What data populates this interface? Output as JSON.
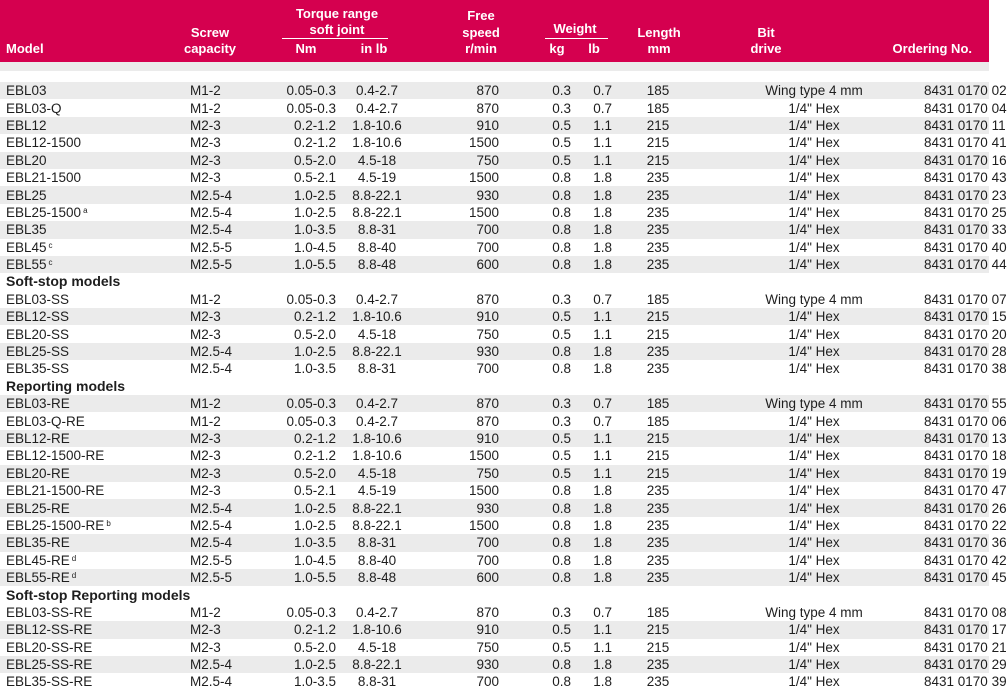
{
  "header": {
    "model": "Model",
    "screw_line1": "Screw",
    "screw_line2": "capacity",
    "torque_line1": "Torque range",
    "torque_line2": "soft joint",
    "torque_nm": "Nm",
    "torque_inlb": "in lb",
    "speed_line1": "Free",
    "speed_line2": "speed",
    "speed_unit": "r/min",
    "weight": "Weight",
    "weight_kg": "kg",
    "weight_lb": "lb",
    "length_line1": "Length",
    "length_unit": "mm",
    "bit_line1": "Bit",
    "bit_line2": "drive",
    "ordering": "Ordering No."
  },
  "groups": [
    {
      "title": "",
      "rows": [
        {
          "model": "EBL03",
          "note": "",
          "screw": "M1-2",
          "nm": "0.05-0.3",
          "inlb": "0.4-2.7",
          "speed": "870",
          "kg": "0.3",
          "lb": "0.7",
          "length": "185",
          "bit": "Wing type 4 mm",
          "ordering": "8431 0170 02"
        },
        {
          "model": "EBL03-Q",
          "note": "",
          "screw": "M1-2",
          "nm": "0.05-0.3",
          "inlb": "0.4-2.7",
          "speed": "870",
          "kg": "0.3",
          "lb": "0.7",
          "length": "185",
          "bit": "1/4\" Hex",
          "ordering": "8431 0170 04"
        },
        {
          "model": "EBL12",
          "note": "",
          "screw": "M2-3",
          "nm": "0.2-1.2",
          "inlb": "1.8-10.6",
          "speed": "910",
          "kg": "0.5",
          "lb": "1.1",
          "length": "215",
          "bit": "1/4\" Hex",
          "ordering": "8431 0170 11"
        },
        {
          "model": "EBL12-1500",
          "note": "",
          "screw": "M2-3",
          "nm": "0.2-1.2",
          "inlb": "1.8-10.6",
          "speed": "1500",
          "kg": "0.5",
          "lb": "1.1",
          "length": "215",
          "bit": "1/4\" Hex",
          "ordering": "8431 0170 41"
        },
        {
          "model": "EBL20",
          "note": "",
          "screw": "M2-3",
          "nm": "0.5-2.0",
          "inlb": "4.5-18",
          "speed": "750",
          "kg": "0.5",
          "lb": "1.1",
          "length": "215",
          "bit": "1/4\" Hex",
          "ordering": "8431 0170 16"
        },
        {
          "model": "EBL21-1500",
          "note": "",
          "screw": "M2-3",
          "nm": "0.5-2.1",
          "inlb": "4.5-19",
          "speed": "1500",
          "kg": "0.8",
          "lb": "1.8",
          "length": "235",
          "bit": "1/4\" Hex",
          "ordering": "8431 0170 43"
        },
        {
          "model": "EBL25",
          "note": "",
          "screw": "M2.5-4",
          "nm": "1.0-2.5",
          "inlb": "8.8-22.1",
          "speed": "930",
          "kg": "0.8",
          "lb": "1.8",
          "length": "235",
          "bit": "1/4\" Hex",
          "ordering": "8431 0170 23"
        },
        {
          "model": "EBL25-1500",
          "note": "a",
          "screw": "M2.5-4",
          "nm": "1.0-2.5",
          "inlb": "8.8-22.1",
          "speed": "1500",
          "kg": "0.8",
          "lb": "1.8",
          "length": "235",
          "bit": "1/4\" Hex",
          "ordering": "8431 0170 25"
        },
        {
          "model": "EBL35",
          "note": "",
          "screw": "M2.5-4",
          "nm": "1.0-3.5",
          "inlb": "8.8-31",
          "speed": "700",
          "kg": "0.8",
          "lb": "1.8",
          "length": "235",
          "bit": "1/4\" Hex",
          "ordering": "8431 0170 33"
        },
        {
          "model": "EBL45",
          "note": "c",
          "screw": "M2.5-5",
          "nm": "1.0-4.5",
          "inlb": "8.8-40",
          "speed": "700",
          "kg": "0.8",
          "lb": "1.8",
          "length": "235",
          "bit": "1/4\" Hex",
          "ordering": "8431 0170 40"
        },
        {
          "model": "EBL55",
          "note": "c",
          "screw": "M2.5-5",
          "nm": "1.0-5.5",
          "inlb": "8.8-48",
          "speed": "600",
          "kg": "0.8",
          "lb": "1.8",
          "length": "235",
          "bit": "1/4\" Hex",
          "ordering": "8431 0170 44"
        }
      ]
    },
    {
      "title": "Soft-stop models",
      "rows": [
        {
          "model": "EBL03-SS",
          "note": "",
          "screw": "M1-2",
          "nm": "0.05-0.3",
          "inlb": "0.4-2.7",
          "speed": "870",
          "kg": "0.3",
          "lb": "0.7",
          "length": "185",
          "bit": "Wing type 4 mm",
          "ordering": "8431 0170 07"
        },
        {
          "model": "EBL12-SS",
          "note": "",
          "screw": "M2-3",
          "nm": "0.2-1.2",
          "inlb": "1.8-10.6",
          "speed": "910",
          "kg": "0.5",
          "lb": "1.1",
          "length": "215",
          "bit": "1/4\" Hex",
          "ordering": "8431 0170 15"
        },
        {
          "model": "EBL20-SS",
          "note": "",
          "screw": "M2-3",
          "nm": "0.5-2.0",
          "inlb": "4.5-18",
          "speed": "750",
          "kg": "0.5",
          "lb": "1.1",
          "length": "215",
          "bit": "1/4\" Hex",
          "ordering": "8431 0170 20"
        },
        {
          "model": "EBL25-SS",
          "note": "",
          "screw": "M2.5-4",
          "nm": "1.0-2.5",
          "inlb": "8.8-22.1",
          "speed": "930",
          "kg": "0.8",
          "lb": "1.8",
          "length": "235",
          "bit": "1/4\" Hex",
          "ordering": "8431 0170 28"
        },
        {
          "model": "EBL35-SS",
          "note": "",
          "screw": "M2.5-4",
          "nm": "1.0-3.5",
          "inlb": "8.8-31",
          "speed": "700",
          "kg": "0.8",
          "lb": "1.8",
          "length": "235",
          "bit": "1/4\" Hex",
          "ordering": "8431 0170 38"
        }
      ]
    },
    {
      "title": "Reporting models",
      "rows": [
        {
          "model": "EBL03-RE",
          "note": "",
          "screw": "M1-2",
          "nm": "0.05-0.3",
          "inlb": "0.4-2.7",
          "speed": "870",
          "kg": "0.3",
          "lb": "0.7",
          "length": "185",
          "bit": "Wing type 4 mm",
          "ordering": "8431 0170 55"
        },
        {
          "model": "EBL03-Q-RE",
          "note": "",
          "screw": "M1-2",
          "nm": "0.05-0.3",
          "inlb": "0.4-2.7",
          "speed": "870",
          "kg": "0.3",
          "lb": "0.7",
          "length": "185",
          "bit": "1/4\" Hex",
          "ordering": "8431 0170 06"
        },
        {
          "model": "EBL12-RE",
          "note": "",
          "screw": "M2-3",
          "nm": "0.2-1.2",
          "inlb": "1.8-10.6",
          "speed": "910",
          "kg": "0.5",
          "lb": "1.1",
          "length": "215",
          "bit": "1/4\" Hex",
          "ordering": "8431 0170 13"
        },
        {
          "model": "EBL12-1500-RE",
          "note": "",
          "screw": "M2-3",
          "nm": "0.2-1.2",
          "inlb": "1.8-10.6",
          "speed": "1500",
          "kg": "0.5",
          "lb": "1.1",
          "length": "215",
          "bit": "1/4\" Hex",
          "ordering": "8431 0170 18"
        },
        {
          "model": "EBL20-RE",
          "note": "",
          "screw": "M2-3",
          "nm": "0.5-2.0",
          "inlb": "4.5-18",
          "speed": "750",
          "kg": "0.5",
          "lb": "1.1",
          "length": "215",
          "bit": "1/4\" Hex",
          "ordering": "8431 0170 19"
        },
        {
          "model": "EBL21-1500-RE",
          "note": "",
          "screw": "M2-3",
          "nm": "0.5-2.1",
          "inlb": "4.5-19",
          "speed": "1500",
          "kg": "0.8",
          "lb": "1.8",
          "length": "235",
          "bit": "1/4\" Hex",
          "ordering": "8431 0170 47"
        },
        {
          "model": "EBL25-RE",
          "note": "",
          "screw": "M2.5-4",
          "nm": "1.0-2.5",
          "inlb": "8.8-22.1",
          "speed": "930",
          "kg": "0.8",
          "lb": "1.8",
          "length": "235",
          "bit": "1/4\" Hex",
          "ordering": "8431 0170 26"
        },
        {
          "model": "EBL25-1500-RE",
          "note": "b",
          "screw": "M2.5-4",
          "nm": "1.0-2.5",
          "inlb": "8.8-22.1",
          "speed": "1500",
          "kg": "0.8",
          "lb": "1.8",
          "length": "235",
          "bit": "1/4\" Hex",
          "ordering": "8431 0170 22"
        },
        {
          "model": "EBL35-RE",
          "note": "",
          "screw": "M2.5-4",
          "nm": "1.0-3.5",
          "inlb": "8.8-31",
          "speed": "700",
          "kg": "0.8",
          "lb": "1.8",
          "length": "235",
          "bit": "1/4\" Hex",
          "ordering": "8431 0170 36"
        },
        {
          "model": "EBL45-RE",
          "note": "d",
          "screw": "M2.5-5",
          "nm": "1.0-4.5",
          "inlb": "8.8-40",
          "speed": "700",
          "kg": "0.8",
          "lb": "1.8",
          "length": "235",
          "bit": "1/4\" Hex",
          "ordering": "8431 0170 42"
        },
        {
          "model": "EBL55-RE",
          "note": "d",
          "screw": "M2.5-5",
          "nm": "1.0-5.5",
          "inlb": "8.8-48",
          "speed": "600",
          "kg": "0.8",
          "lb": "1.8",
          "length": "235",
          "bit": "1/4\" Hex",
          "ordering": "8431 0170 45"
        }
      ]
    },
    {
      "title": "Soft-stop Reporting models",
      "rows": [
        {
          "model": "EBL03-SS-RE",
          "note": "",
          "screw": "M1-2",
          "nm": "0.05-0.3",
          "inlb": "0.4-2.7",
          "speed": "870",
          "kg": "0.3",
          "lb": "0.7",
          "length": "185",
          "bit": "Wing type 4 mm",
          "ordering": "8431 0170 08"
        },
        {
          "model": "EBL12-SS-RE",
          "note": "",
          "screw": "M2-3",
          "nm": "0.2-1.2",
          "inlb": "1.8-10.6",
          "speed": "910",
          "kg": "0.5",
          "lb": "1.1",
          "length": "215",
          "bit": "1/4\" Hex",
          "ordering": "8431 0170 17"
        },
        {
          "model": "EBL20-SS-RE",
          "note": "",
          "screw": "M2-3",
          "nm": "0.5-2.0",
          "inlb": "4.5-18",
          "speed": "750",
          "kg": "0.5",
          "lb": "1.1",
          "length": "215",
          "bit": "1/4\" Hex",
          "ordering": "8431 0170 21"
        },
        {
          "model": "EBL25-SS-RE",
          "note": "",
          "screw": "M2.5-4",
          "nm": "1.0-2.5",
          "inlb": "8.8-22.1",
          "speed": "930",
          "kg": "0.8",
          "lb": "1.8",
          "length": "235",
          "bit": "1/4\" Hex",
          "ordering": "8431 0170 29"
        },
        {
          "model": "EBL35-SS-RE",
          "note": "",
          "screw": "M2.5-4",
          "nm": "1.0-3.5",
          "inlb": "8.8-31",
          "speed": "700",
          "kg": "0.8",
          "lb": "1.8",
          "length": "235",
          "bit": "1/4\" Hex",
          "ordering": "8431 0170 39"
        }
      ]
    }
  ]
}
